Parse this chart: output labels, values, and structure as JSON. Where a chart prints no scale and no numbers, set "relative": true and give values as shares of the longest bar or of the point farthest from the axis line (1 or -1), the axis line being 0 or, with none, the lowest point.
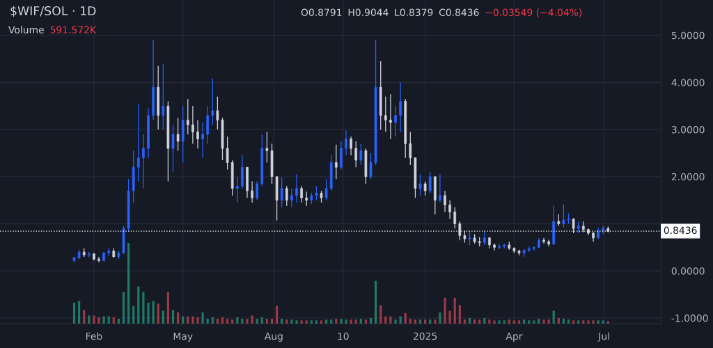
{
  "chart_data": [
    {
      "type": "candlestick",
      "title": "$WIF/SOL · 1D",
      "x": [
        "2024-01-12",
        "2024-01-17",
        "2024-01-22",
        "2024-01-27",
        "2024-02-01",
        "2024-02-06",
        "2024-02-11",
        "2024-02-16",
        "2024-02-21",
        "2024-02-26",
        "2024-03-02",
        "2024-03-07",
        "2024-03-12",
        "2024-03-17",
        "2024-03-22",
        "2024-03-27",
        "2024-04-01",
        "2024-04-06",
        "2024-04-11",
        "2024-04-16",
        "2024-04-21",
        "2024-04-26",
        "2024-05-01",
        "2024-05-06",
        "2024-05-11",
        "2024-05-16",
        "2024-05-21",
        "2024-05-26",
        "2024-05-31",
        "2024-06-05",
        "2024-06-10",
        "2024-06-15",
        "2024-06-20",
        "2024-06-25",
        "2024-06-30",
        "2024-07-05",
        "2024-07-10",
        "2024-07-15",
        "2024-07-20",
        "2024-07-25",
        "2024-07-30",
        "2024-08-04",
        "2024-08-09",
        "2024-08-14",
        "2024-08-19",
        "2024-08-24",
        "2024-08-29",
        "2024-09-03",
        "2024-09-08",
        "2024-09-13",
        "2024-09-18",
        "2024-09-23",
        "2024-09-28",
        "2024-10-03",
        "2024-10-08",
        "2024-10-13",
        "2024-10-18",
        "2024-10-23",
        "2024-10-28",
        "2024-11-02",
        "2024-11-07",
        "2024-11-12",
        "2024-11-17",
        "2024-11-22",
        "2024-11-27",
        "2024-12-02",
        "2024-12-07",
        "2024-12-12",
        "2024-12-17",
        "2024-12-22",
        "2024-12-27",
        "2025-01-01",
        "2025-01-06",
        "2025-01-11",
        "2025-01-16",
        "2025-01-21",
        "2025-01-26",
        "2025-01-31",
        "2025-02-05",
        "2025-02-10",
        "2025-02-15",
        "2025-02-20",
        "2025-02-25",
        "2025-03-02",
        "2025-03-07",
        "2025-03-12",
        "2025-03-17",
        "2025-03-22",
        "2025-03-27",
        "2025-04-01",
        "2025-04-06",
        "2025-04-11",
        "2025-04-16",
        "2025-04-21",
        "2025-04-26",
        "2025-05-01",
        "2025-05-06",
        "2025-05-11",
        "2025-05-16",
        "2025-05-21",
        "2025-05-26",
        "2025-05-31",
        "2025-06-05",
        "2025-06-10",
        "2025-06-15",
        "2025-06-20",
        "2025-06-25",
        "2025-06-30",
        "2025-07-05"
      ],
      "ohlc": [
        [
          0.22,
          0.3,
          0.18,
          0.28
        ],
        [
          0.28,
          0.45,
          0.25,
          0.4
        ],
        [
          0.4,
          0.48,
          0.3,
          0.34
        ],
        [
          0.34,
          0.4,
          0.28,
          0.36
        ],
        [
          0.36,
          0.38,
          0.22,
          0.25
        ],
        [
          0.25,
          0.3,
          0.18,
          0.22
        ],
        [
          0.22,
          0.4,
          0.2,
          0.38
        ],
        [
          0.38,
          0.48,
          0.32,
          0.42
        ],
        [
          0.42,
          0.48,
          0.28,
          0.3
        ],
        [
          0.3,
          0.42,
          0.25,
          0.38
        ],
        [
          0.38,
          0.95,
          0.36,
          0.9
        ],
        [
          0.9,
          1.95,
          0.85,
          1.7
        ],
        [
          1.7,
          2.55,
          1.45,
          2.2
        ],
        [
          2.2,
          3.55,
          1.9,
          2.4
        ],
        [
          2.4,
          2.9,
          1.75,
          2.6
        ],
        [
          2.6,
          3.45,
          2.4,
          3.3
        ],
        [
          3.3,
          4.9,
          3.2,
          3.9
        ],
        [
          3.9,
          4.35,
          3.0,
          3.3
        ],
        [
          3.3,
          4.4,
          3.0,
          3.5
        ],
        [
          3.5,
          3.6,
          1.9,
          2.6
        ],
        [
          2.6,
          3.1,
          2.1,
          2.9
        ],
        [
          2.9,
          3.25,
          2.55,
          2.75
        ],
        [
          2.75,
          3.5,
          2.3,
          3.2
        ],
        [
          3.2,
          3.65,
          2.9,
          3.1
        ],
        [
          3.1,
          3.5,
          2.7,
          2.95
        ],
        [
          2.95,
          3.2,
          2.6,
          2.8
        ],
        [
          2.8,
          3.15,
          2.4,
          2.9
        ],
        [
          2.9,
          3.5,
          2.7,
          3.3
        ],
        [
          3.3,
          4.08,
          3.1,
          3.4
        ],
        [
          3.4,
          3.7,
          3.0,
          3.2
        ],
        [
          3.2,
          3.25,
          2.35,
          2.6
        ],
        [
          2.6,
          2.85,
          2.15,
          2.3
        ],
        [
          2.3,
          2.35,
          1.6,
          1.75
        ],
        [
          1.75,
          2.0,
          1.45,
          1.8
        ],
        [
          1.8,
          2.45,
          1.75,
          2.2
        ],
        [
          2.2,
          2.2,
          1.55,
          1.7
        ],
        [
          1.7,
          1.9,
          1.45,
          1.55
        ],
        [
          1.55,
          1.9,
          1.5,
          1.85
        ],
        [
          1.85,
          2.9,
          1.8,
          2.6
        ],
        [
          2.6,
          2.95,
          2.3,
          2.55
        ],
        [
          2.55,
          2.7,
          1.85,
          2.0
        ],
        [
          2.0,
          2.0,
          1.07,
          1.5
        ],
        [
          1.5,
          1.98,
          1.35,
          1.75
        ],
        [
          1.75,
          1.8,
          1.38,
          1.5
        ],
        [
          1.5,
          1.75,
          1.35,
          1.6
        ],
        [
          1.6,
          2.05,
          1.45,
          1.75
        ],
        [
          1.75,
          1.8,
          1.45,
          1.55
        ],
        [
          1.55,
          1.68,
          1.38,
          1.5
        ],
        [
          1.5,
          1.66,
          1.42,
          1.6
        ],
        [
          1.6,
          1.8,
          1.5,
          1.65
        ],
        [
          1.65,
          1.7,
          1.45,
          1.55
        ],
        [
          1.55,
          1.95,
          1.5,
          1.75
        ],
        [
          1.75,
          2.45,
          1.7,
          2.3
        ],
        [
          2.3,
          2.68,
          1.95,
          2.2
        ],
        [
          2.2,
          2.75,
          2.15,
          2.6
        ],
        [
          2.6,
          2.98,
          2.45,
          2.8
        ],
        [
          2.8,
          2.85,
          2.45,
          2.6
        ],
        [
          2.6,
          2.75,
          2.2,
          2.35
        ],
        [
          2.35,
          2.7,
          2.25,
          2.55
        ],
        [
          2.55,
          2.6,
          1.85,
          2.0
        ],
        [
          2.0,
          2.5,
          1.95,
          2.3
        ],
        [
          2.3,
          4.91,
          2.25,
          3.9
        ],
        [
          3.9,
          4.45,
          3.0,
          3.3
        ],
        [
          3.3,
          3.7,
          2.95,
          3.2
        ],
        [
          3.2,
          3.75,
          2.8,
          3.15
        ],
        [
          3.15,
          3.5,
          2.85,
          3.3
        ],
        [
          3.3,
          4.0,
          2.95,
          3.6
        ],
        [
          3.6,
          3.65,
          2.4,
          2.7
        ],
        [
          2.7,
          2.95,
          2.25,
          2.4
        ],
        [
          2.4,
          2.4,
          1.55,
          1.75
        ],
        [
          1.75,
          2.05,
          1.6,
          1.85
        ],
        [
          1.85,
          1.9,
          1.6,
          1.7
        ],
        [
          1.7,
          2.1,
          1.65,
          2.0
        ],
        [
          2.0,
          2.0,
          1.2,
          1.5
        ],
        [
          1.5,
          2.05,
          1.45,
          1.6
        ],
        [
          1.6,
          1.7,
          1.25,
          1.4
        ],
        [
          1.4,
          1.5,
          1.1,
          1.25
        ],
        [
          1.25,
          1.35,
          0.9,
          1.0
        ],
        [
          1.0,
          1.05,
          0.65,
          0.75
        ],
        [
          0.75,
          0.85,
          0.6,
          0.68
        ],
        [
          0.68,
          0.85,
          0.55,
          0.7
        ],
        [
          0.7,
          0.78,
          0.58,
          0.62
        ],
        [
          0.62,
          0.72,
          0.52,
          0.6
        ],
        [
          0.6,
          0.85,
          0.55,
          0.7
        ],
        [
          0.7,
          0.72,
          0.48,
          0.55
        ],
        [
          0.55,
          0.58,
          0.43,
          0.5
        ],
        [
          0.5,
          0.57,
          0.46,
          0.52
        ],
        [
          0.52,
          0.58,
          0.48,
          0.55
        ],
        [
          0.55,
          0.62,
          0.45,
          0.48
        ],
        [
          0.48,
          0.5,
          0.38,
          0.42
        ],
        [
          0.42,
          0.45,
          0.33,
          0.38
        ],
        [
          0.38,
          0.46,
          0.3,
          0.44
        ],
        [
          0.44,
          0.52,
          0.4,
          0.47
        ],
        [
          0.47,
          0.52,
          0.42,
          0.5
        ],
        [
          0.5,
          0.7,
          0.48,
          0.65
        ],
        [
          0.65,
          0.7,
          0.58,
          0.62
        ],
        [
          0.62,
          0.66,
          0.52,
          0.57
        ],
        [
          0.57,
          1.38,
          0.55,
          1.05
        ],
        [
          1.05,
          1.2,
          0.95,
          1.0
        ],
        [
          1.0,
          1.41,
          0.93,
          1.08
        ],
        [
          1.08,
          1.22,
          1.0,
          1.1
        ],
        [
          1.1,
          1.12,
          0.8,
          0.9
        ],
        [
          0.9,
          1.05,
          0.8,
          0.95
        ],
        [
          0.95,
          1.05,
          0.82,
          0.88
        ],
        [
          0.88,
          0.9,
          0.76,
          0.8
        ],
        [
          0.8,
          0.83,
          0.62,
          0.7
        ],
        [
          0.7,
          0.92,
          0.68,
          0.85
        ],
        [
          0.85,
          0.96,
          0.78,
          0.9
        ],
        [
          0.9,
          0.94,
          0.82,
          0.84
        ]
      ],
      "colors": [
        "#2962ff",
        "#2962ff",
        "#d1d4dc",
        "#2962ff",
        "#d1d4dc",
        "#d1d4dc",
        "#2962ff",
        "#2962ff",
        "#d1d4dc",
        "#2962ff",
        "#2962ff",
        "#2962ff",
        "#2962ff",
        "#2962ff",
        "#2962ff",
        "#2962ff",
        "#2962ff",
        "#d1d4dc",
        "#2962ff",
        "#d1d4dc",
        "#2962ff",
        "#d1d4dc",
        "#2962ff",
        "#d1d4dc",
        "#d1d4dc",
        "#d1d4dc",
        "#2962ff",
        "#2962ff",
        "#2962ff",
        "#d1d4dc",
        "#d1d4dc",
        "#d1d4dc",
        "#d1d4dc",
        "#2962ff",
        "#2962ff",
        "#d1d4dc",
        "#d1d4dc",
        "#2962ff",
        "#2962ff",
        "#d1d4dc",
        "#d1d4dc",
        "#d1d4dc",
        "#2962ff",
        "#d1d4dc",
        "#2962ff",
        "#2962ff",
        "#d1d4dc",
        "#d1d4dc",
        "#2962ff",
        "#2962ff",
        "#d1d4dc",
        "#2962ff",
        "#2962ff",
        "#d1d4dc",
        "#2962ff",
        "#2962ff",
        "#d1d4dc",
        "#d1d4dc",
        "#2962ff",
        "#d1d4dc",
        "#2962ff",
        "#2962ff",
        "#d1d4dc",
        "#d1d4dc",
        "#d1d4dc",
        "#2962ff",
        "#2962ff",
        "#d1d4dc",
        "#d1d4dc",
        "#d1d4dc",
        "#2962ff",
        "#d1d4dc",
        "#2962ff",
        "#d1d4dc",
        "#2962ff",
        "#d1d4dc",
        "#d1d4dc",
        "#d1d4dc",
        "#d1d4dc",
        "#d1d4dc",
        "#2962ff",
        "#d1d4dc",
        "#d1d4dc",
        "#2962ff",
        "#d1d4dc",
        "#d1d4dc",
        "#2962ff",
        "#2962ff",
        "#d1d4dc",
        "#d1d4dc",
        "#d1d4dc",
        "#2962ff",
        "#2962ff",
        "#2962ff",
        "#2962ff",
        "#d1d4dc",
        "#d1d4dc",
        "#2962ff",
        "#d1d4dc",
        "#2962ff",
        "#2962ff",
        "#d1d4dc",
        "#2962ff",
        "#d1d4dc",
        "#d1d4dc",
        "#d1d4dc",
        "#2962ff",
        "#2962ff",
        "#d1d4dc"
      ],
      "xlim": [
        "2023-10-29",
        "2025-08-28"
      ],
      "xticks": [
        {
          "value": "2024-02-01",
          "label": "Feb"
        },
        {
          "value": "2024-05-01",
          "label": "May"
        },
        {
          "value": "2024-08-01",
          "label": "Aug"
        },
        {
          "value": "2024-10-10",
          "label": "10"
        },
        {
          "value": "2025-01-01",
          "label": "2025"
        },
        {
          "value": "2025-04-01",
          "label": "Apr"
        },
        {
          "value": "2025-07-01",
          "label": "Jul"
        }
      ],
      "ylim": [
        -1.12,
        5.75
      ],
      "yticks": [
        {
          "value": -1,
          "label": "-1.0000"
        },
        {
          "value": 0,
          "label": "0.0000"
        },
        {
          "value": 1,
          "label": null
        },
        {
          "value": 2,
          "label": "2.0000"
        },
        {
          "value": 3,
          "label": "3.0000"
        },
        {
          "value": 4,
          "label": "4.0000"
        },
        {
          "value": 5,
          "label": "5.0000"
        }
      ],
      "grid": true,
      "ref_lines": [
        {
          "axis": "y",
          "value": 0.8436,
          "label": "0.8436",
          "color": "#ffffff",
          "line_style": "dotted"
        }
      ],
      "annotations": [
        "O0.8791",
        "H0.9044",
        "L0.8379",
        "C0.8436",
        "−0.03549 (−4.04%)"
      ]
    },
    {
      "type": "bar",
      "relative": true,
      "x": [
        "2024-01-12",
        "2024-01-17",
        "2024-01-22",
        "2024-01-27",
        "2024-02-01",
        "2024-02-06",
        "2024-02-11",
        "2024-02-16",
        "2024-02-21",
        "2024-02-26",
        "2024-03-02",
        "2024-03-07",
        "2024-03-12",
        "2024-03-17",
        "2024-03-22",
        "2024-03-27",
        "2024-04-01",
        "2024-04-06",
        "2024-04-11",
        "2024-04-16",
        "2024-04-21",
        "2024-04-26",
        "2024-05-01",
        "2024-05-06",
        "2024-05-11",
        "2024-05-16",
        "2024-05-21",
        "2024-05-26",
        "2024-05-31",
        "2024-06-05",
        "2024-06-10",
        "2024-06-15",
        "2024-06-20",
        "2024-06-25",
        "2024-06-30",
        "2024-07-05",
        "2024-07-10",
        "2024-07-15",
        "2024-07-20",
        "2024-07-25",
        "2024-07-30",
        "2024-08-04",
        "2024-08-09",
        "2024-08-14",
        "2024-08-19",
        "2024-08-24",
        "2024-08-29",
        "2024-09-03",
        "2024-09-08",
        "2024-09-13",
        "2024-09-18",
        "2024-09-23",
        "2024-09-28",
        "2024-10-03",
        "2024-10-08",
        "2024-10-13",
        "2024-10-18",
        "2024-10-23",
        "2024-10-28",
        "2024-11-02",
        "2024-11-07",
        "2024-11-12",
        "2024-11-17",
        "2024-11-22",
        "2024-11-27",
        "2024-12-02",
        "2024-12-07",
        "2024-12-12",
        "2024-12-17",
        "2024-12-22",
        "2024-12-27",
        "2025-01-01",
        "2025-01-06",
        "2025-01-11",
        "2025-01-16",
        "2025-01-21",
        "2025-01-26",
        "2025-01-31",
        "2025-02-05",
        "2025-02-10",
        "2025-02-15",
        "2025-02-20",
        "2025-02-25",
        "2025-03-02",
        "2025-03-07",
        "2025-03-12",
        "2025-03-17",
        "2025-03-22",
        "2025-03-27",
        "2025-04-01",
        "2025-04-06",
        "2025-04-11",
        "2025-04-16",
        "2025-04-21",
        "2025-04-26",
        "2025-05-01",
        "2025-05-06",
        "2025-05-11",
        "2025-05-16",
        "2025-05-21",
        "2025-05-26",
        "2025-05-31",
        "2025-06-05",
        "2025-06-10",
        "2025-06-15",
        "2025-06-20",
        "2025-06-25",
        "2025-06-30",
        "2025-07-05"
      ],
      "values": [
        0.26,
        0.28,
        0.17,
        0.1,
        0.1,
        0.08,
        0.09,
        0.09,
        0.08,
        0.06,
        0.39,
        1.0,
        0.22,
        0.46,
        0.39,
        0.26,
        0.28,
        0.25,
        0.16,
        0.39,
        0.17,
        0.14,
        0.09,
        0.09,
        0.09,
        0.08,
        0.14,
        0.06,
        0.08,
        0.06,
        0.08,
        0.06,
        0.05,
        0.08,
        0.06,
        0.06,
        0.1,
        0.06,
        0.08,
        0.06,
        0.06,
        0.22,
        0.06,
        0.05,
        0.05,
        0.04,
        0.04,
        0.04,
        0.04,
        0.04,
        0.04,
        0.05,
        0.05,
        0.06,
        0.06,
        0.05,
        0.05,
        0.05,
        0.06,
        0.05,
        0.07,
        0.53,
        0.23,
        0.09,
        0.09,
        0.05,
        0.09,
        0.13,
        0.06,
        0.05,
        0.05,
        0.05,
        0.05,
        0.05,
        0.14,
        0.32,
        0.16,
        0.32,
        0.23,
        0.05,
        0.07,
        0.05,
        0.05,
        0.07,
        0.05,
        0.04,
        0.04,
        0.04,
        0.05,
        0.04,
        0.04,
        0.05,
        0.04,
        0.04,
        0.06,
        0.05,
        0.05,
        0.16,
        0.07,
        0.06,
        0.05,
        0.04,
        0.04,
        0.04,
        0.04,
        0.04,
        0.04,
        0.04,
        0.03
      ],
      "colors": [
        "#1f7a68",
        "#1f7a68",
        "#9c3a48",
        "#1f7a68",
        "#9c3a48",
        "#9c3a48",
        "#1f7a68",
        "#1f7a68",
        "#9c3a48",
        "#1f7a68",
        "#1f7a68",
        "#1f7a68",
        "#1f7a68",
        "#1f7a68",
        "#1f7a68",
        "#1f7a68",
        "#1f7a68",
        "#9c3a48",
        "#1f7a68",
        "#9c3a48",
        "#1f7a68",
        "#9c3a48",
        "#1f7a68",
        "#9c3a48",
        "#9c3a48",
        "#9c3a48",
        "#1f7a68",
        "#1f7a68",
        "#1f7a68",
        "#9c3a48",
        "#9c3a48",
        "#9c3a48",
        "#9c3a48",
        "#1f7a68",
        "#1f7a68",
        "#9c3a48",
        "#9c3a48",
        "#1f7a68",
        "#1f7a68",
        "#9c3a48",
        "#9c3a48",
        "#9c3a48",
        "#1f7a68",
        "#9c3a48",
        "#1f7a68",
        "#1f7a68",
        "#9c3a48",
        "#9c3a48",
        "#1f7a68",
        "#1f7a68",
        "#9c3a48",
        "#1f7a68",
        "#1f7a68",
        "#9c3a48",
        "#1f7a68",
        "#1f7a68",
        "#9c3a48",
        "#9c3a48",
        "#1f7a68",
        "#9c3a48",
        "#1f7a68",
        "#1f7a68",
        "#9c3a48",
        "#9c3a48",
        "#9c3a48",
        "#1f7a68",
        "#1f7a68",
        "#9c3a48",
        "#9c3a48",
        "#9c3a48",
        "#1f7a68",
        "#9c3a48",
        "#1f7a68",
        "#9c3a48",
        "#1f7a68",
        "#9c3a48",
        "#9c3a48",
        "#9c3a48",
        "#9c3a48",
        "#9c3a48",
        "#1f7a68",
        "#9c3a48",
        "#9c3a48",
        "#1f7a68",
        "#9c3a48",
        "#9c3a48",
        "#1f7a68",
        "#1f7a68",
        "#9c3a48",
        "#9c3a48",
        "#9c3a48",
        "#1f7a68",
        "#1f7a68",
        "#1f7a68",
        "#1f7a68",
        "#9c3a48",
        "#9c3a48",
        "#1f7a68",
        "#9c3a48",
        "#1f7a68",
        "#1f7a68",
        "#9c3a48",
        "#1f7a68",
        "#9c3a48",
        "#9c3a48",
        "#9c3a48",
        "#1f7a68",
        "#1f7a68",
        "#9c3a48"
      ],
      "xlim": [
        "2023-10-29",
        "2025-08-28"
      ],
      "annotations": [
        "Volume",
        "591.572K"
      ]
    }
  ]
}
